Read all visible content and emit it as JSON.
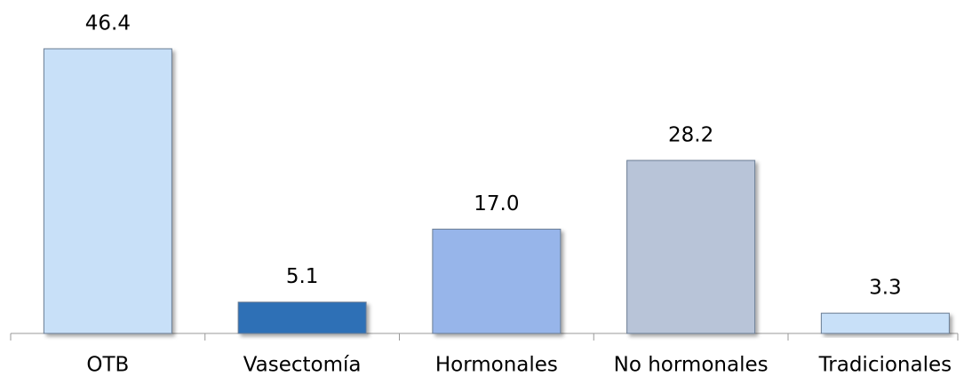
{
  "chart_data": {
    "type": "bar",
    "categories": [
      "OTB",
      "Vasectomía",
      "Hormonales",
      "No hormonales",
      "Tradicionales"
    ],
    "values": [
      46.4,
      5.1,
      17.0,
      28.2,
      3.3
    ],
    "value_labels": [
      "46.4",
      "5.1",
      "17.0",
      "28.2",
      "3.3"
    ],
    "colors": [
      "#c8e0f8",
      "#2f6fb6",
      "#97b5ea",
      "#b8c4d8",
      "#c8e0f8"
    ]
  }
}
